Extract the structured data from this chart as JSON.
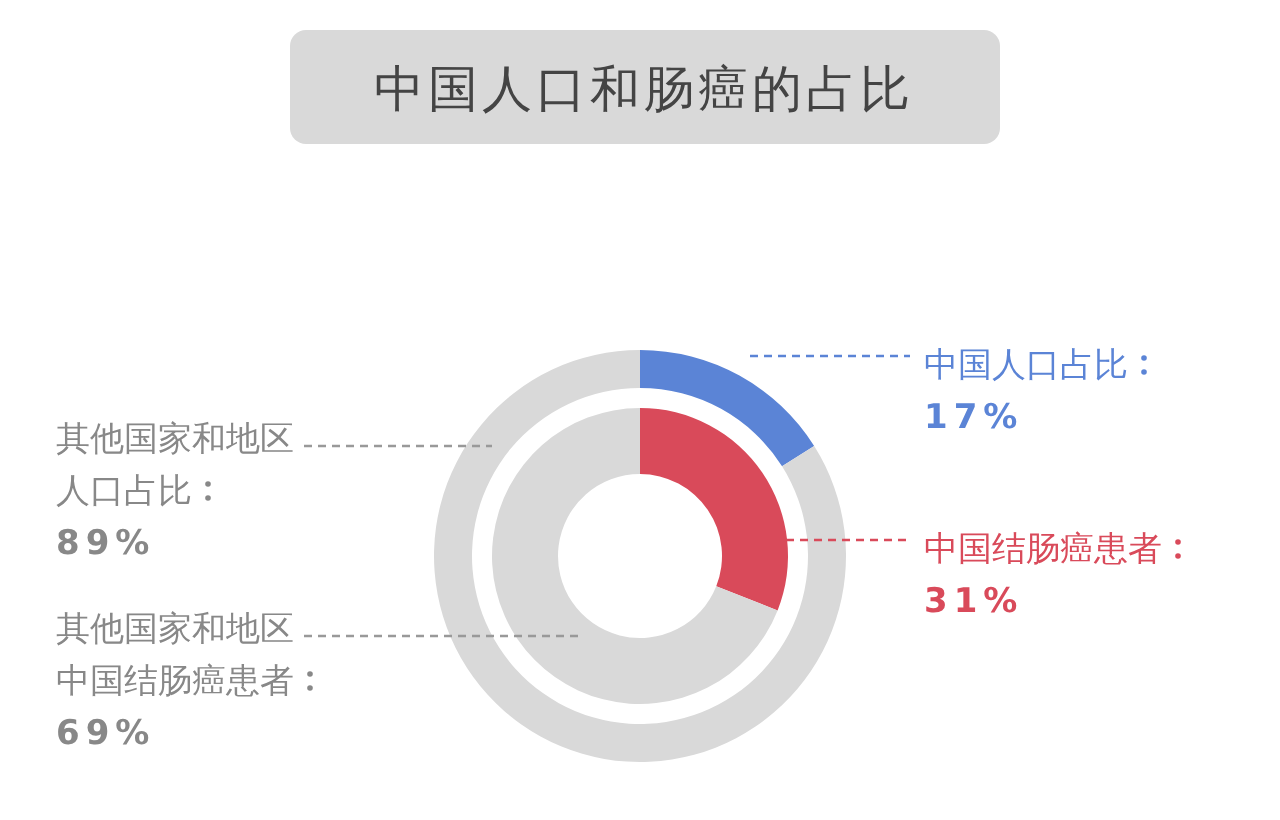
{
  "chart_data": [
    {
      "type": "donut",
      "title": "中国人口和肠癌的占比",
      "categories": [
        "中国人口占比",
        "其他国家和地区人口占比"
      ],
      "values": [
        17,
        89
      ],
      "value_labels": [
        "17%",
        "89%"
      ],
      "colors": [
        "#5b84d6",
        "#d9d9d9"
      ]
    },
    {
      "type": "donut",
      "categories": [
        "中国结肠癌患者",
        "其他国家和地区中国结肠癌患者"
      ],
      "values": [
        31,
        69
      ],
      "value_labels": [
        "31%",
        "69%"
      ],
      "colors": [
        "#d94a5a",
        "#d9d9d9"
      ]
    }
  ]
}
